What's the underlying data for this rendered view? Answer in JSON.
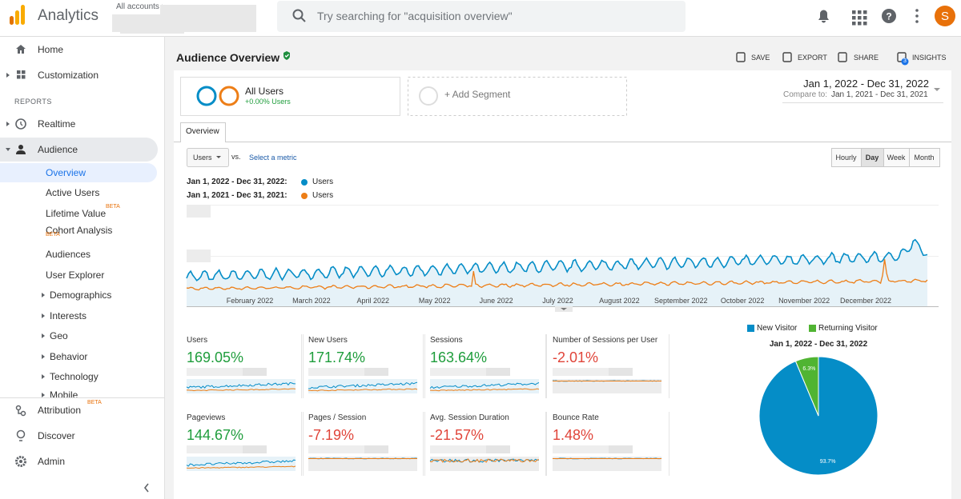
{
  "header": {
    "product": "Analytics",
    "account": "All accounts",
    "search_placeholder": "Try searching for \"acquisition overview\"",
    "avatar": "S"
  },
  "sidebar": {
    "nav": [
      {
        "label": "Home"
      },
      {
        "label": "Customization"
      }
    ],
    "reports_heading": "REPORTS",
    "reports": [
      {
        "label": "Realtime"
      },
      {
        "label": "Audience",
        "children": [
          {
            "label": "Overview"
          },
          {
            "label": "Active Users"
          },
          {
            "label": "Lifetime Value",
            "badge": "BETA"
          },
          {
            "label": "Cohort Analysis",
            "badge": "BETA"
          },
          {
            "label": "Audiences"
          },
          {
            "label": "User Explorer"
          },
          {
            "label": "Demographics"
          },
          {
            "label": "Interests"
          },
          {
            "label": "Geo"
          },
          {
            "label": "Behavior"
          },
          {
            "label": "Technology"
          },
          {
            "label": "Mobile"
          }
        ]
      }
    ],
    "footer": [
      {
        "label": "Attribution",
        "badge": "BETA"
      },
      {
        "label": "Discover"
      },
      {
        "label": "Admin"
      }
    ]
  },
  "page": {
    "title": "Audience Overview",
    "actions": [
      {
        "label": "SAVE"
      },
      {
        "label": "EXPORT"
      },
      {
        "label": "SHARE"
      },
      {
        "label": "INSIGHTS",
        "badge": "3"
      }
    ],
    "segment": {
      "name": "All Users",
      "change": "+0.00% Users"
    },
    "add_segment": "+ Add Segment",
    "date_range": "Jan 1, 2022 - Dec 31, 2022",
    "compare_label": "Compare to:",
    "compare_range": "Jan 1, 2021 - Dec 31, 2021",
    "tab": "Overview",
    "metric_select": "Users",
    "vs": "vs.",
    "select_metric": "Select a metric",
    "granularity": [
      "Hourly",
      "Day",
      "Week",
      "Month"
    ],
    "legend": [
      {
        "period": "Jan 1, 2022 - Dec 31, 2022:",
        "metric": "Users",
        "color": "#058dc7"
      },
      {
        "period": "Jan 1, 2021 - Dec 31, 2021:",
        "metric": "Users",
        "color": "#ed7e17"
      }
    ],
    "months": [
      "February 2022",
      "March 2022",
      "April 2022",
      "May 2022",
      "June 2022",
      "July 2022",
      "August 2022",
      "September 2022",
      "October 2022",
      "November 2022",
      "December 2022"
    ],
    "metrics": [
      {
        "name": "Users",
        "value": "169.05%",
        "color": "#1f9d3c"
      },
      {
        "name": "New Users",
        "value": "171.74%",
        "color": "#1f9d3c"
      },
      {
        "name": "Sessions",
        "value": "163.64%",
        "color": "#1f9d3c"
      },
      {
        "name": "Number of Sessions per User",
        "value": "-2.01%",
        "color": "#e0453a"
      },
      {
        "name": "Pageviews",
        "value": "144.67%",
        "color": "#1f9d3c"
      },
      {
        "name": "Pages / Session",
        "value": "-7.19%",
        "color": "#e0453a"
      },
      {
        "name": "Avg. Session Duration",
        "value": "-21.57%",
        "color": "#e0453a"
      },
      {
        "name": "Bounce Rate",
        "value": "1.48%",
        "color": "#e0453a"
      }
    ]
  },
  "chart_data": {
    "type": "pie",
    "title": "Jan 1, 2022 - Dec 31, 2022",
    "categories": [
      "New Visitor",
      "Returning Visitor"
    ],
    "values": [
      93.7,
      6.3
    ],
    "value_labels": [
      "93.7%",
      "6.3%"
    ],
    "colors": [
      "#058dc7",
      "#50b432"
    ]
  }
}
